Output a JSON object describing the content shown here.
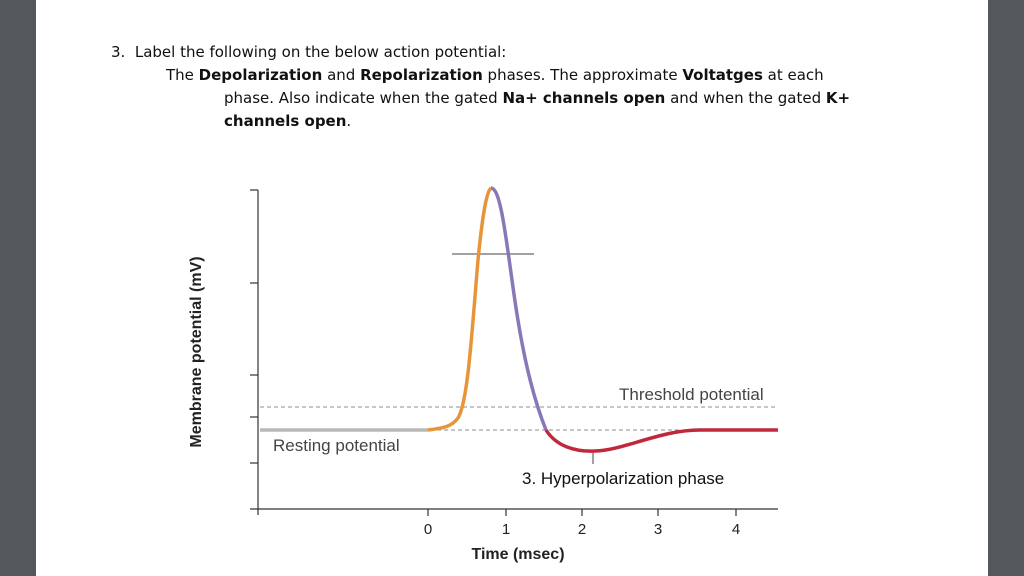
{
  "question": {
    "number": "3.",
    "line1": "Label the following on the below action potential:",
    "line2_pre": "The ",
    "line2_b1": "Depolarization",
    "line2_mid": " and ",
    "line2_b2": "Repolarization",
    "line2_post": " phases.  The approximate ",
    "line2_b3": "Voltatges",
    "line2_end": " at each",
    "line3_pre": "phase.  Also indicate when the gated ",
    "line3_b1": "Na+ channels open",
    "line3_mid": " and when the gated ",
    "line3_b2": "K+",
    "line4_b": "channels open",
    "line4_end": "."
  },
  "figure": {
    "ylabel": "Membrane potential (mV)",
    "xlabel": "Time (msec)",
    "x_ticks": [
      "0",
      "1",
      "2",
      "3",
      "4"
    ],
    "threshold_label": "Threshold potential",
    "resting_label": "Resting potential",
    "phase3_label": "3. Hyperpolarization phase",
    "colors": {
      "resting": "#b8b8b8",
      "depolarization": "#e8953a",
      "repolarization": "#8878b8",
      "hyperpolarization": "#c0283c",
      "dashed": "#999999"
    }
  }
}
